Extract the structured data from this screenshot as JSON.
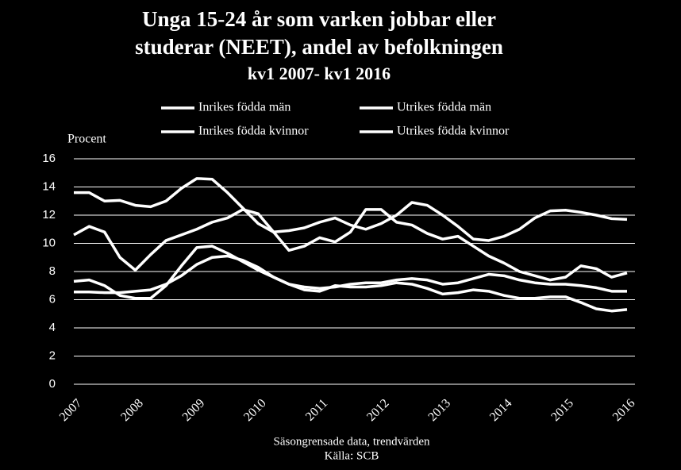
{
  "chart_data": {
    "type": "line",
    "title": [
      "Unga 15-24 år som varken jobbar eller",
      "studerar (NEET), andel av befolkningen",
      "kv1 2007- kv1 2016"
    ],
    "y_label": "Procent",
    "footnotes": [
      "Säsongrensade data, trendvärden",
      "Källa: SCB"
    ],
    "categories": [
      "2007",
      null,
      null,
      null,
      "2008",
      null,
      null,
      null,
      "2009",
      null,
      null,
      null,
      "2010",
      null,
      null,
      null,
      "2011",
      null,
      null,
      null,
      "2012",
      null,
      null,
      null,
      "2013",
      null,
      null,
      null,
      "2014",
      null,
      null,
      null,
      "2015",
      null,
      null,
      null,
      "2016"
    ],
    "series": [
      {
        "name": "Inrikes födda män",
        "color": "#ffffff",
        "values": [
          7.3,
          7.4,
          7.0,
          6.3,
          6.1,
          6.1,
          7.0,
          8.4,
          9.7,
          9.8,
          9.3,
          8.7,
          8.1,
          7.6,
          7.1,
          6.7,
          6.6,
          7.0,
          6.9,
          6.9,
          7.0,
          7.2,
          7.1,
          6.8,
          6.4,
          6.5,
          6.7,
          6.6,
          6.3,
          6.1,
          6.1,
          6.2,
          6.2,
          5.8,
          5.35,
          5.2,
          5.3
        ]
      },
      {
        "name": "Utrikes födda män",
        "color": "#ffffff",
        "values": [
          10.6,
          11.2,
          10.8,
          9.0,
          8.1,
          9.2,
          10.2,
          10.6,
          11.0,
          11.5,
          11.8,
          12.4,
          12.1,
          10.8,
          10.9,
          11.1,
          11.5,
          11.8,
          11.3,
          11.0,
          11.4,
          12.0,
          12.9,
          12.7,
          12.0,
          11.2,
          10.3,
          10.2,
          10.5,
          11.0,
          11.8,
          12.3,
          12.35,
          12.2,
          12.0,
          11.75,
          11.7
        ]
      },
      {
        "name": "Inrikes födda kvinnor",
        "color": "#ffffff",
        "values": [
          6.55,
          6.55,
          6.5,
          6.5,
          6.6,
          6.7,
          7.1,
          7.7,
          8.5,
          9.0,
          9.1,
          8.8,
          8.3,
          7.6,
          7.1,
          6.9,
          6.8,
          6.9,
          7.1,
          7.2,
          7.2,
          7.4,
          7.5,
          7.4,
          7.1,
          7.2,
          7.5,
          7.8,
          7.7,
          7.4,
          7.2,
          7.1,
          7.1,
          7.0,
          6.85,
          6.6,
          6.6
        ]
      },
      {
        "name": "Utrikes födda kvinnor",
        "color": "#ffffff",
        "values": [
          13.6,
          13.6,
          13.0,
          13.05,
          12.7,
          12.6,
          13.0,
          13.9,
          14.6,
          14.55,
          13.6,
          12.5,
          11.4,
          10.8,
          9.5,
          9.8,
          10.4,
          10.1,
          10.8,
          12.4,
          12.4,
          11.5,
          11.3,
          10.7,
          10.3,
          10.5,
          9.8,
          9.1,
          8.6,
          8.0,
          7.7,
          7.4,
          7.6,
          8.4,
          8.2,
          7.6,
          7.9
        ]
      }
    ],
    "ylim": [
      0,
      16
    ],
    "yticks": [
      0,
      2,
      4,
      6,
      8,
      10,
      12,
      14,
      16
    ],
    "grid": true
  }
}
